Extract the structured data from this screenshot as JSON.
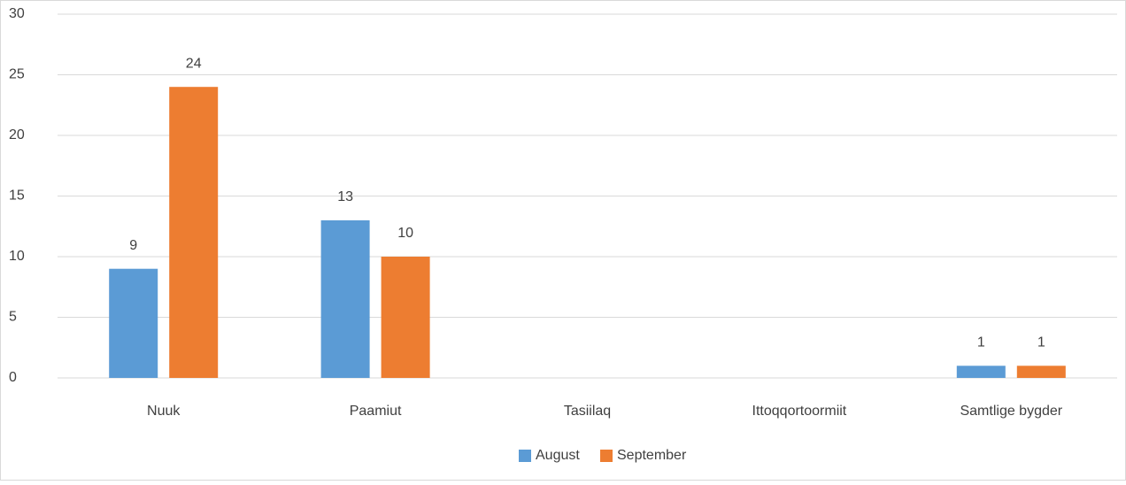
{
  "chart_data": {
    "type": "bar",
    "categories": [
      "Nuuk",
      "Paamiut",
      "Tasiilaq",
      "Ittoqqortoormiit",
      "Samtlige bygder"
    ],
    "series": [
      {
        "name": "August",
        "color": "#5b9bd5",
        "values": [
          9,
          13,
          null,
          null,
          1
        ]
      },
      {
        "name": "September",
        "color": "#ed7d31",
        "values": [
          24,
          10,
          null,
          null,
          1
        ]
      }
    ],
    "ylim": [
      0,
      30
    ],
    "yticks": [
      0,
      5,
      10,
      15,
      20,
      25,
      30
    ],
    "grid": true,
    "legend": "bottom"
  }
}
